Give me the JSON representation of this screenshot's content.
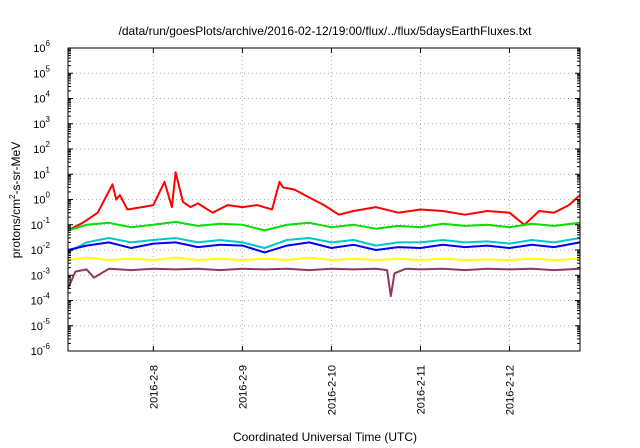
{
  "chart_data": {
    "type": "line",
    "title": "/data/run/goesPlots/archive/2016-02-12/19:00/flux/../flux/5daysEarthFluxes.txt",
    "xlabel": "Coordinated Universal Time (UTC)",
    "ylabel": {
      "base": "protons/cm",
      "sup": "2",
      "rest": "-s-sr-MeV"
    },
    "yscale": "log",
    "ylim": [
      1e-06,
      1000000.0
    ],
    "xlim": [
      "2016-02-07 01:00",
      "2016-02-12 19:00"
    ],
    "grid": true,
    "legend": "none",
    "x_ticks": [
      "2016-2-8",
      "2016-2-9",
      "2016-2-10",
      "2016-2-11",
      "2016-2-12"
    ],
    "y_ticks": [
      {
        "base": "10",
        "exp": "-6"
      },
      {
        "base": "10",
        "exp": "-5"
      },
      {
        "base": "10",
        "exp": "-4"
      },
      {
        "base": "10",
        "exp": "-3"
      },
      {
        "base": "10",
        "exp": "-2"
      },
      {
        "base": "10",
        "exp": "-1"
      },
      {
        "base": "10",
        "exp": "0"
      },
      {
        "base": "10",
        "exp": "1"
      },
      {
        "base": "10",
        "exp": "2"
      },
      {
        "base": "10",
        "exp": "3"
      },
      {
        "base": "10",
        "exp": "4"
      },
      {
        "base": "10",
        "exp": "5"
      },
      {
        "base": "10",
        "exp": "6"
      }
    ],
    "series": [
      {
        "color": "#ff0000",
        "x": [
          "2016-02-07 01:00",
          "2016-02-07 05:00",
          "2016-02-07 09:00",
          "2016-02-07 13:00",
          "2016-02-07 14:00",
          "2016-02-07 15:00",
          "2016-02-07 17:00",
          "2016-02-07 21:00",
          "2016-02-08 00:00",
          "2016-02-08 03:00",
          "2016-02-08 05:00",
          "2016-02-08 06:00",
          "2016-02-08 08:00",
          "2016-02-08 10:00",
          "2016-02-08 12:00",
          "2016-02-08 16:00",
          "2016-02-08 20:00",
          "2016-02-09 00:00",
          "2016-02-09 04:00",
          "2016-02-09 08:00",
          "2016-02-09 10:00",
          "2016-02-09 11:00",
          "2016-02-09 14:00",
          "2016-02-09 18:00",
          "2016-02-09 22:00",
          "2016-02-10 02:00",
          "2016-02-10 06:00",
          "2016-02-10 12:00",
          "2016-02-10 18:00",
          "2016-02-11 00:00",
          "2016-02-11 06:00",
          "2016-02-11 12:00",
          "2016-02-11 18:00",
          "2016-02-12 00:00",
          "2016-02-12 04:00",
          "2016-02-12 08:00",
          "2016-02-12 12:00",
          "2016-02-12 16:00",
          "2016-02-12 19:00"
        ],
        "y": [
          0.06,
          0.12,
          0.3,
          4,
          1,
          1.5,
          0.4,
          0.5,
          0.6,
          5,
          0.5,
          12,
          0.8,
          0.5,
          0.7,
          0.3,
          0.6,
          0.5,
          0.6,
          0.4,
          5,
          3,
          2.5,
          1.2,
          0.6,
          0.25,
          0.35,
          0.5,
          0.3,
          0.4,
          0.35,
          0.25,
          0.35,
          0.3,
          0.1,
          0.35,
          0.3,
          0.6,
          1.5
        ]
      },
      {
        "color": "#00e000",
        "x": [
          "2016-02-07 01:00",
          "2016-02-07 06:00",
          "2016-02-07 12:00",
          "2016-02-07 18:00",
          "2016-02-08 00:00",
          "2016-02-08 06:00",
          "2016-02-08 12:00",
          "2016-02-08 18:00",
          "2016-02-09 00:00",
          "2016-02-09 06:00",
          "2016-02-09 12:00",
          "2016-02-09 18:00",
          "2016-02-10 00:00",
          "2016-02-10 06:00",
          "2016-02-10 12:00",
          "2016-02-10 18:00",
          "2016-02-11 00:00",
          "2016-02-11 06:00",
          "2016-02-11 12:00",
          "2016-02-11 18:00",
          "2016-02-12 00:00",
          "2016-02-12 06:00",
          "2016-02-12 12:00",
          "2016-02-12 19:00"
        ],
        "y": [
          0.06,
          0.1,
          0.12,
          0.08,
          0.1,
          0.13,
          0.09,
          0.11,
          0.1,
          0.06,
          0.1,
          0.12,
          0.08,
          0.1,
          0.07,
          0.09,
          0.08,
          0.11,
          0.09,
          0.1,
          0.08,
          0.11,
          0.09,
          0.12
        ]
      },
      {
        "color": "#00c8c8",
        "x": [
          "2016-02-07 01:00",
          "2016-02-07 06:00",
          "2016-02-07 12:00",
          "2016-02-07 18:00",
          "2016-02-08 00:00",
          "2016-02-08 06:00",
          "2016-02-08 12:00",
          "2016-02-08 18:00",
          "2016-02-09 00:00",
          "2016-02-09 06:00",
          "2016-02-09 12:00",
          "2016-02-09 18:00",
          "2016-02-10 00:00",
          "2016-02-10 06:00",
          "2016-02-10 12:00",
          "2016-02-10 18:00",
          "2016-02-11 00:00",
          "2016-02-11 06:00",
          "2016-02-11 12:00",
          "2016-02-11 18:00",
          "2016-02-12 00:00",
          "2016-02-12 06:00",
          "2016-02-12 12:00",
          "2016-02-12 19:00"
        ],
        "y": [
          0.008,
          0.02,
          0.03,
          0.02,
          0.025,
          0.03,
          0.02,
          0.025,
          0.02,
          0.012,
          0.025,
          0.03,
          0.02,
          0.025,
          0.015,
          0.02,
          0.02,
          0.025,
          0.02,
          0.022,
          0.018,
          0.025,
          0.02,
          0.03
        ]
      },
      {
        "color": "#0000ff",
        "x": [
          "2016-02-07 01:00",
          "2016-02-07 06:00",
          "2016-02-07 12:00",
          "2016-02-07 18:00",
          "2016-02-08 00:00",
          "2016-02-08 06:00",
          "2016-02-08 12:00",
          "2016-02-08 18:00",
          "2016-02-09 00:00",
          "2016-02-09 06:00",
          "2016-02-09 12:00",
          "2016-02-09 18:00",
          "2016-02-10 00:00",
          "2016-02-10 06:00",
          "2016-02-10 12:00",
          "2016-02-10 18:00",
          "2016-02-11 00:00",
          "2016-02-11 06:00",
          "2016-02-11 12:00",
          "2016-02-11 18:00",
          "2016-02-12 00:00",
          "2016-02-12 06:00",
          "2016-02-12 12:00",
          "2016-02-12 19:00"
        ],
        "y": [
          0.01,
          0.015,
          0.02,
          0.012,
          0.018,
          0.02,
          0.013,
          0.016,
          0.015,
          0.008,
          0.015,
          0.02,
          0.012,
          0.016,
          0.01,
          0.013,
          0.012,
          0.016,
          0.013,
          0.015,
          0.012,
          0.016,
          0.013,
          0.02
        ]
      },
      {
        "color": "#ffff00",
        "x": [
          "2016-02-07 01:00",
          "2016-02-07 06:00",
          "2016-02-07 12:00",
          "2016-02-07 18:00",
          "2016-02-08 00:00",
          "2016-02-08 06:00",
          "2016-02-08 12:00",
          "2016-02-08 18:00",
          "2016-02-09 00:00",
          "2016-02-09 06:00",
          "2016-02-09 12:00",
          "2016-02-09 18:00",
          "2016-02-10 00:00",
          "2016-02-10 06:00",
          "2016-02-10 12:00",
          "2016-02-10 18:00",
          "2016-02-11 00:00",
          "2016-02-11 06:00",
          "2016-02-11 12:00",
          "2016-02-11 18:00",
          "2016-02-12 00:00",
          "2016-02-12 06:00",
          "2016-02-12 12:00",
          "2016-02-12 19:00"
        ],
        "y": [
          0.004,
          0.005,
          0.004,
          0.0045,
          0.004,
          0.005,
          0.004,
          0.0045,
          0.004,
          0.0045,
          0.004,
          0.005,
          0.004,
          0.0045,
          0.004,
          0.0045,
          0.004,
          0.0045,
          0.004,
          0.0042,
          0.004,
          0.0045,
          0.004,
          0.0045
        ]
      },
      {
        "color": "#8b3a62",
        "x": [
          "2016-02-07 01:00",
          "2016-02-07 03:00",
          "2016-02-07 06:00",
          "2016-02-07 08:00",
          "2016-02-07 12:00",
          "2016-02-07 18:00",
          "2016-02-08 00:00",
          "2016-02-08 06:00",
          "2016-02-08 12:00",
          "2016-02-08 18:00",
          "2016-02-09 00:00",
          "2016-02-09 06:00",
          "2016-02-09 12:00",
          "2016-02-09 18:00",
          "2016-02-10 00:00",
          "2016-02-10 06:00",
          "2016-02-10 12:00",
          "2016-02-10 15:00",
          "2016-02-10 16:00",
          "2016-02-10 17:00",
          "2016-02-10 20:00",
          "2016-02-11 00:00",
          "2016-02-11 06:00",
          "2016-02-11 12:00",
          "2016-02-11 18:00",
          "2016-02-12 00:00",
          "2016-02-12 06:00",
          "2016-02-12 12:00",
          "2016-02-12 19:00"
        ],
        "y": [
          0.0003,
          0.0014,
          0.0017,
          0.0008,
          0.0018,
          0.0016,
          0.0018,
          0.0017,
          0.0018,
          0.0016,
          0.0018,
          0.0017,
          0.0018,
          0.0016,
          0.0018,
          0.0017,
          0.0018,
          0.0016,
          0.00015,
          0.0012,
          0.0018,
          0.0017,
          0.0018,
          0.0016,
          0.0018,
          0.0017,
          0.0018,
          0.0016,
          0.0018
        ]
      }
    ]
  }
}
